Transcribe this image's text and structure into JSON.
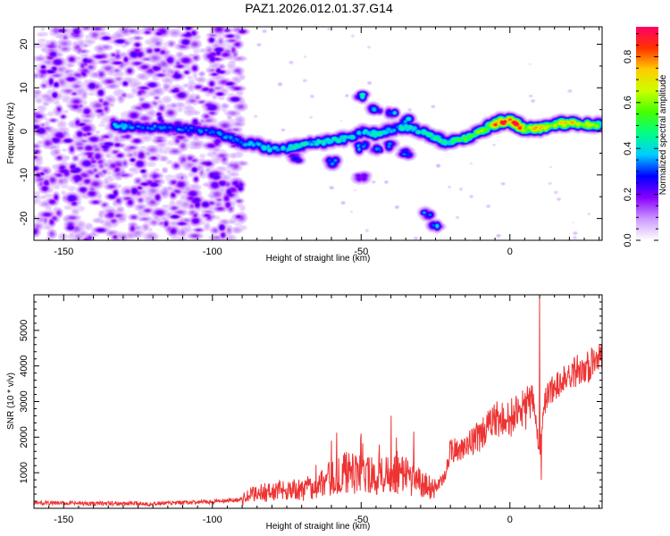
{
  "title": "PAZ1.2026.012.01.37.G14",
  "chart_data": [
    {
      "type": "heatmap",
      "name": "spectrogram",
      "xlabel": "Height of straight line (km)",
      "ylabel": "Frequency (Hz)",
      "xlim": [
        -160,
        31
      ],
      "ylim": [
        -25,
        24
      ],
      "xticks": [
        -150,
        -100,
        -50,
        0
      ],
      "yticks": [
        -20,
        -10,
        0,
        10,
        20
      ],
      "colorbar": {
        "label": "Normalized spectral amplitude",
        "range": [
          0,
          0.93
        ],
        "ticks": [
          0.0,
          0.2,
          0.4,
          0.6,
          0.8
        ],
        "colors": [
          "#ffffff",
          "#cc99ff",
          "#8800ff",
          "#0000ff",
          "#00ccff",
          "#00ff88",
          "#44ff00",
          "#ccff00",
          "#ffcc00",
          "#ff3300",
          "#ff0066"
        ]
      },
      "noise_region_x": [
        -160,
        -90
      ],
      "ridge": [
        [
          -133,
          1.5,
          0.35
        ],
        [
          -125,
          1.0,
          0.3
        ],
        [
          -115,
          0.8,
          0.3
        ],
        [
          -105,
          0.5,
          0.3
        ],
        [
          -98,
          -0.5,
          0.3
        ],
        [
          -90,
          -2.5,
          0.3
        ],
        [
          -85,
          -3.0,
          0.35
        ],
        [
          -80,
          -4.0,
          0.4
        ],
        [
          -75,
          -4.0,
          0.35
        ],
        [
          -70,
          -3.0,
          0.4
        ],
        [
          -65,
          -2.5,
          0.38
        ],
        [
          -60,
          -2.0,
          0.4
        ],
        [
          -55,
          -1.5,
          0.38
        ],
        [
          -50,
          0.0,
          0.35
        ],
        [
          -45,
          -0.5,
          0.4
        ],
        [
          -40,
          0.5,
          0.35
        ],
        [
          -35,
          1.0,
          0.4
        ],
        [
          -30,
          0.0,
          0.38
        ],
        [
          -25,
          -1.5,
          0.42
        ],
        [
          -20,
          -2.5,
          0.45
        ],
        [
          -15,
          -1.5,
          0.5
        ],
        [
          -10,
          0.0,
          0.55
        ],
        [
          -5,
          2.0,
          0.75
        ],
        [
          0,
          2.5,
          0.85
        ],
        [
          5,
          0.5,
          0.7
        ],
        [
          10,
          1.0,
          0.65
        ],
        [
          15,
          1.5,
          0.6
        ],
        [
          20,
          2.0,
          0.65
        ],
        [
          25,
          1.5,
          0.6
        ],
        [
          30,
          1.5,
          0.55
        ]
      ],
      "secondary_features": [
        [
          -50,
          8.0,
          0.45
        ],
        [
          -45,
          5.0,
          0.35
        ],
        [
          -40,
          4.0,
          0.4
        ],
        [
          -35,
          2.5,
          0.4
        ],
        [
          -40,
          -3.0,
          0.35
        ],
        [
          -35,
          -5.0,
          0.35
        ],
        [
          -45,
          -4.0,
          0.35
        ],
        [
          -50,
          -3.5,
          0.35
        ],
        [
          -60,
          -7.0,
          0.35
        ],
        [
          -28,
          -19.0,
          0.4
        ],
        [
          -25,
          -22.0,
          0.4
        ],
        [
          -50,
          -10.5,
          0.25
        ],
        [
          -130,
          1.0,
          0.3
        ],
        [
          -72,
          -6.0,
          0.3
        ]
      ]
    },
    {
      "type": "line",
      "name": "snr",
      "xlabel": "Height of straight line (km)",
      "ylabel": "SNR (10 * v/v)",
      "xlim": [
        -160,
        31
      ],
      "ylim": [
        0,
        6000
      ],
      "xticks": [
        -150,
        -100,
        -50,
        0
      ],
      "yticks": [
        1000,
        2000,
        3000,
        4000,
        5000
      ],
      "color": "#ee3333",
      "trend": [
        [
          -160,
          150
        ],
        [
          -150,
          140
        ],
        [
          -120,
          130
        ],
        [
          -100,
          180
        ],
        [
          -90,
          250
        ],
        [
          -85,
          450
        ],
        [
          -80,
          450
        ],
        [
          -75,
          550
        ],
        [
          -70,
          500
        ],
        [
          -65,
          650
        ],
        [
          -60,
          850
        ],
        [
          -55,
          1000
        ],
        [
          -50,
          950
        ],
        [
          -45,
          900
        ],
        [
          -40,
          1050
        ],
        [
          -35,
          950
        ],
        [
          -30,
          700
        ],
        [
          -25,
          550
        ],
        [
          -22,
          900
        ],
        [
          -20,
          1600
        ],
        [
          -15,
          1750
        ],
        [
          -10,
          2050
        ],
        [
          -5,
          2450
        ],
        [
          0,
          2550
        ],
        [
          5,
          2800
        ],
        [
          8,
          2900
        ],
        [
          10,
          1600
        ],
        [
          12,
          3100
        ],
        [
          15,
          3400
        ],
        [
          20,
          3800
        ],
        [
          25,
          3950
        ],
        [
          31,
          4200
        ]
      ],
      "spikes": [
        [
          10,
          5900
        ],
        [
          10.5,
          800
        ],
        [
          -50,
          2100
        ],
        [
          -40,
          2600
        ],
        [
          -60,
          1900
        ]
      ]
    }
  ]
}
